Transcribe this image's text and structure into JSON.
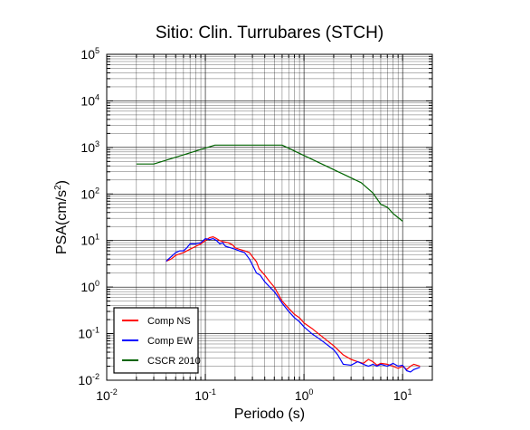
{
  "chart_data": {
    "type": "line",
    "title": "Sitio: Clin. Turrubares (STCH)",
    "xlabel": "Periodo (s)",
    "ylabel_main": "PSA(cm/s",
    "ylabel_sup": "2",
    "ylabel_close": ")",
    "x_scale": "log",
    "y_scale": "log",
    "xlim": [
      0.01,
      20
    ],
    "ylim": [
      0.01,
      100000
    ],
    "x_ticks": [
      {
        "value": 0.01,
        "base": "10",
        "exp": "-2"
      },
      {
        "value": 0.1,
        "base": "10",
        "exp": "-1"
      },
      {
        "value": 1,
        "base": "10",
        "exp": "0"
      },
      {
        "value": 10,
        "base": "10",
        "exp": "1"
      }
    ],
    "y_ticks": [
      {
        "value": 0.01,
        "base": "10",
        "exp": "-2"
      },
      {
        "value": 0.1,
        "base": "10",
        "exp": "-1"
      },
      {
        "value": 1,
        "base": "10",
        "exp": "0"
      },
      {
        "value": 10,
        "base": "10",
        "exp": "1"
      },
      {
        "value": 100,
        "base": "10",
        "exp": "2"
      },
      {
        "value": 1000,
        "base": "10",
        "exp": "3"
      },
      {
        "value": 10000,
        "base": "10",
        "exp": "4"
      },
      {
        "value": 100000,
        "base": "10",
        "exp": "5"
      }
    ],
    "grid": true,
    "legend_position": "bottom-left",
    "series": [
      {
        "name": "Comp NS",
        "color": "#ff0000",
        "points": [
          [
            0.04,
            3.6
          ],
          [
            0.045,
            4.0
          ],
          [
            0.05,
            4.8
          ],
          [
            0.06,
            5.5
          ],
          [
            0.07,
            6.5
          ],
          [
            0.08,
            7.5
          ],
          [
            0.09,
            8.5
          ],
          [
            0.1,
            10.0
          ],
          [
            0.11,
            11.5
          ],
          [
            0.12,
            12.0
          ],
          [
            0.13,
            11.0
          ],
          [
            0.14,
            10.0
          ],
          [
            0.15,
            9.5
          ],
          [
            0.17,
            9.0
          ],
          [
            0.19,
            8.0
          ],
          [
            0.2,
            7.0
          ],
          [
            0.22,
            6.5
          ],
          [
            0.25,
            6.0
          ],
          [
            0.28,
            5.5
          ],
          [
            0.3,
            4.5
          ],
          [
            0.33,
            3.5
          ],
          [
            0.35,
            2.5
          ],
          [
            0.4,
            1.8
          ],
          [
            0.45,
            1.3
          ],
          [
            0.5,
            1.0
          ],
          [
            0.55,
            0.7
          ],
          [
            0.6,
            0.5
          ],
          [
            0.7,
            0.35
          ],
          [
            0.8,
            0.26
          ],
          [
            0.9,
            0.22
          ],
          [
            1.0,
            0.17
          ],
          [
            1.2,
            0.13
          ],
          [
            1.4,
            0.1
          ],
          [
            1.6,
            0.08
          ],
          [
            2.0,
            0.055
          ],
          [
            2.5,
            0.035
          ],
          [
            3.0,
            0.028
          ],
          [
            3.5,
            0.025
          ],
          [
            4.0,
            0.023
          ],
          [
            4.5,
            0.028
          ],
          [
            5.0,
            0.025
          ],
          [
            5.5,
            0.021
          ],
          [
            6.0,
            0.023
          ],
          [
            7.0,
            0.022
          ],
          [
            8.0,
            0.02
          ],
          [
            9.0,
            0.018
          ],
          [
            10.0,
            0.02
          ],
          [
            11.0,
            0.017
          ],
          [
            12.0,
            0.02
          ],
          [
            13.0,
            0.022
          ],
          [
            15.0,
            0.02
          ]
        ]
      },
      {
        "name": "Comp EW",
        "color": "#0000ff",
        "points": [
          [
            0.04,
            3.6
          ],
          [
            0.045,
            4.5
          ],
          [
            0.05,
            5.5
          ],
          [
            0.055,
            6.0
          ],
          [
            0.06,
            6.0
          ],
          [
            0.065,
            7.0
          ],
          [
            0.07,
            8.5
          ],
          [
            0.08,
            8.5
          ],
          [
            0.09,
            9.0
          ],
          [
            0.1,
            11.0
          ],
          [
            0.11,
            10.5
          ],
          [
            0.12,
            11.0
          ],
          [
            0.13,
            10.0
          ],
          [
            0.14,
            8.5
          ],
          [
            0.15,
            9.0
          ],
          [
            0.16,
            7.5
          ],
          [
            0.18,
            7.0
          ],
          [
            0.2,
            6.5
          ],
          [
            0.22,
            6.0
          ],
          [
            0.25,
            5.5
          ],
          [
            0.28,
            4.0
          ],
          [
            0.3,
            3.0
          ],
          [
            0.33,
            2.0
          ],
          [
            0.36,
            1.8
          ],
          [
            0.4,
            1.3
          ],
          [
            0.45,
            1.0
          ],
          [
            0.5,
            0.8
          ],
          [
            0.55,
            0.6
          ],
          [
            0.6,
            0.45
          ],
          [
            0.7,
            0.3
          ],
          [
            0.8,
            0.22
          ],
          [
            0.9,
            0.18
          ],
          [
            1.0,
            0.14
          ],
          [
            1.2,
            0.1
          ],
          [
            1.4,
            0.08
          ],
          [
            1.6,
            0.065
          ],
          [
            2.0,
            0.045
          ],
          [
            2.2,
            0.035
          ],
          [
            2.5,
            0.022
          ],
          [
            3.0,
            0.021
          ],
          [
            3.5,
            0.025
          ],
          [
            4.0,
            0.022
          ],
          [
            4.5,
            0.02
          ],
          [
            5.0,
            0.022
          ],
          [
            5.5,
            0.02
          ],
          [
            6.0,
            0.022
          ],
          [
            7.0,
            0.02
          ],
          [
            8.0,
            0.023
          ],
          [
            9.0,
            0.02
          ],
          [
            10.0,
            0.021
          ],
          [
            11.0,
            0.016
          ],
          [
            12.0,
            0.015
          ],
          [
            13.0,
            0.017
          ],
          [
            15.0,
            0.019
          ]
        ]
      },
      {
        "name": "CSCR 2010",
        "color": "#006400",
        "points": [
          [
            0.02,
            440
          ],
          [
            0.03,
            440
          ],
          [
            0.125,
            1120
          ],
          [
            0.6,
            1120
          ],
          [
            3.8,
            175
          ],
          [
            5.0,
            105
          ],
          [
            6.0,
            60
          ],
          [
            7.0,
            52
          ],
          [
            8.0,
            38
          ],
          [
            10.0,
            26
          ]
        ]
      }
    ]
  }
}
